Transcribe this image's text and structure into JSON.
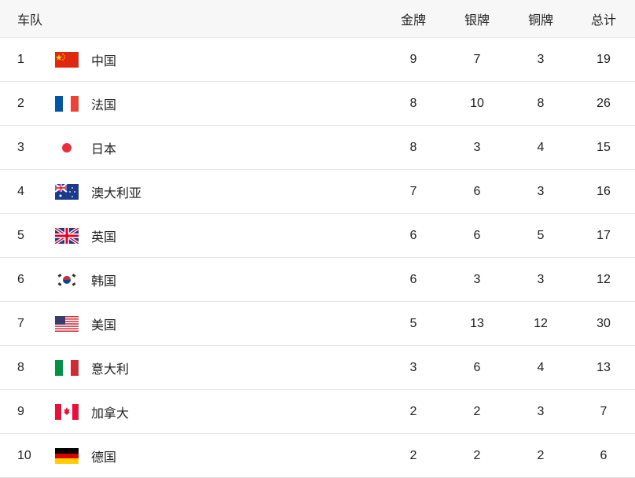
{
  "header": {
    "team": "车队",
    "gold": "金牌",
    "silver": "银牌",
    "bronze": "铜牌",
    "total": "总计"
  },
  "rows": [
    {
      "rank": "1",
      "flag": "china-flag",
      "name": "中国",
      "gold": "9",
      "silver": "7",
      "bronze": "3",
      "total": "19"
    },
    {
      "rank": "2",
      "flag": "france-flag",
      "name": "法国",
      "gold": "8",
      "silver": "10",
      "bronze": "8",
      "total": "26"
    },
    {
      "rank": "3",
      "flag": "japan-flag",
      "name": "日本",
      "gold": "8",
      "silver": "3",
      "bronze": "4",
      "total": "15"
    },
    {
      "rank": "4",
      "flag": "australia-flag",
      "name": "澳大利亚",
      "gold": "7",
      "silver": "6",
      "bronze": "3",
      "total": "16"
    },
    {
      "rank": "5",
      "flag": "uk-flag",
      "name": "英国",
      "gold": "6",
      "silver": "6",
      "bronze": "5",
      "total": "17"
    },
    {
      "rank": "6",
      "flag": "korea-flag",
      "name": "韩国",
      "gold": "6",
      "silver": "3",
      "bronze": "3",
      "total": "12"
    },
    {
      "rank": "7",
      "flag": "usa-flag",
      "name": "美国",
      "gold": "5",
      "silver": "13",
      "bronze": "12",
      "total": "30"
    },
    {
      "rank": "8",
      "flag": "italy-flag",
      "name": "意大利",
      "gold": "3",
      "silver": "6",
      "bronze": "4",
      "total": "13"
    },
    {
      "rank": "9",
      "flag": "canada-flag",
      "name": "加拿大",
      "gold": "2",
      "silver": "2",
      "bronze": "3",
      "total": "7"
    },
    {
      "rank": "10",
      "flag": "germany-flag",
      "name": "德国",
      "gold": "2",
      "silver": "2",
      "bronze": "2",
      "total": "6"
    }
  ]
}
